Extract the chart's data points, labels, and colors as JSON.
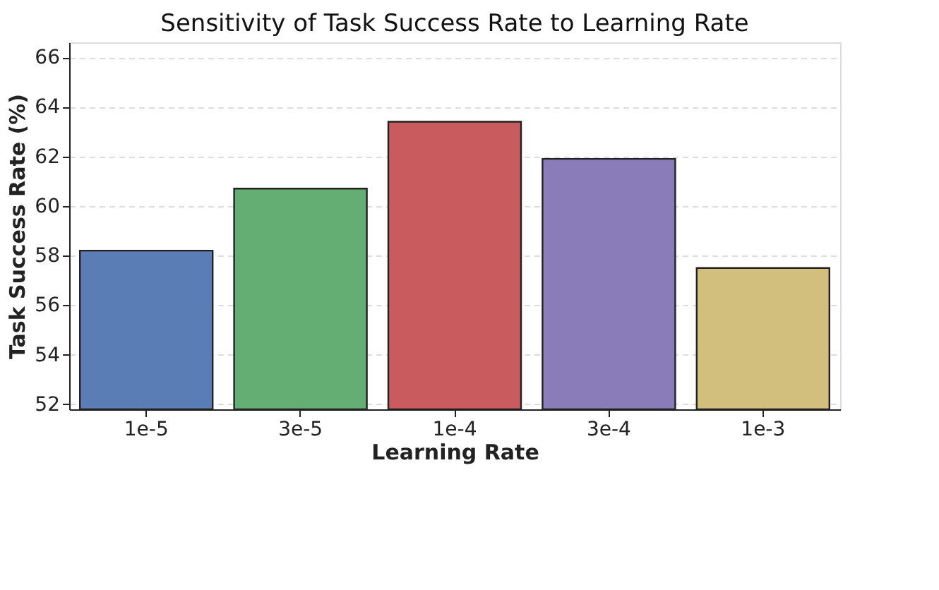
{
  "chart_data": {
    "type": "bar",
    "title": "Sensitivity of Task Success Rate to Learning Rate",
    "xlabel": "Learning Rate",
    "ylabel": "Task Success Rate (%)",
    "categories": [
      "1e-5",
      "3e-5",
      "1e-4",
      "3e-4",
      "1e-3"
    ],
    "values": [
      58.2,
      60.7,
      63.4,
      61.9,
      57.5
    ],
    "colors": [
      "#5a7db5",
      "#64ad73",
      "#c95b5f",
      "#8a7cb8",
      "#d2bf7e"
    ],
    "ylim": [
      51.8,
      66.6
    ],
    "yticks": [
      52,
      54,
      56,
      58,
      60,
      62,
      64,
      66
    ],
    "grid": "y"
  }
}
